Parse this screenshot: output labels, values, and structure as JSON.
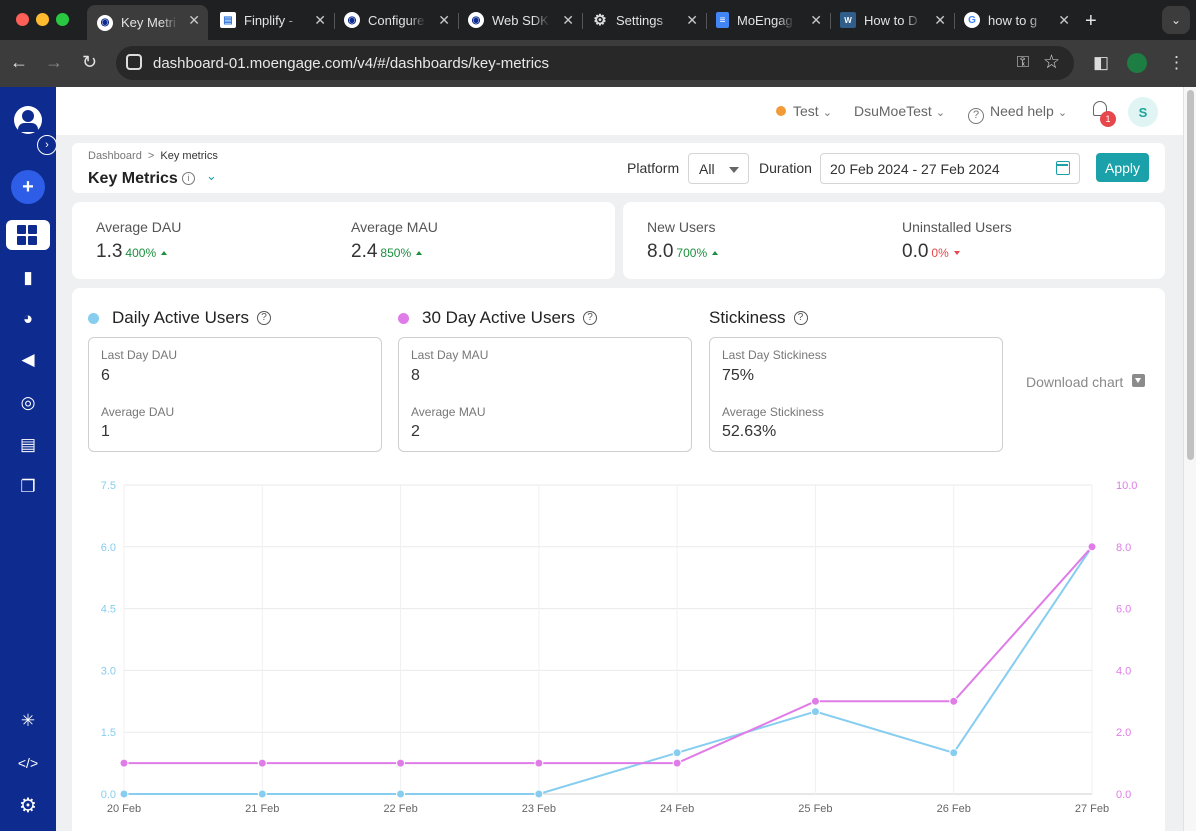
{
  "browser": {
    "tabs": [
      {
        "title": "Key Metri",
        "icon": "moengage-icon",
        "active": true
      },
      {
        "title": "Finplify -",
        "icon": "finplify-icon",
        "active": false
      },
      {
        "title": "Configure",
        "icon": "moengage-icon",
        "active": false
      },
      {
        "title": "Web SDK",
        "icon": "moengage-icon",
        "active": false
      },
      {
        "title": "Settings",
        "icon": "gear-icon",
        "active": false
      },
      {
        "title": "MoEngag",
        "icon": "docs-icon",
        "active": false
      },
      {
        "title": "How to D",
        "icon": "wa-icon",
        "active": false
      },
      {
        "title": "how to g",
        "icon": "google-icon",
        "active": false
      }
    ],
    "url": "dashboard-01.moengage.com/v4/#/dashboards/key-metrics"
  },
  "header": {
    "environment": "Test",
    "workspace": "DsuMoeTest",
    "help": "Need help",
    "notification_count": "1",
    "user_initial": "S"
  },
  "titlebar": {
    "breadcrumb_root": "Dashboard",
    "breadcrumb_sep": ">",
    "breadcrumb_current": "Key metrics",
    "title": "Key Metrics",
    "platform_label": "Platform",
    "platform_value": "All",
    "duration_label": "Duration",
    "duration_value": "20 Feb 2024 - 27 Feb 2024",
    "apply": "Apply"
  },
  "kpis": [
    {
      "label": "Average DAU",
      "value": "1.3",
      "pct": "400%",
      "trend": "up"
    },
    {
      "label": "Average MAU",
      "value": "2.4",
      "pct": "850%",
      "trend": "up"
    },
    {
      "label": "New Users",
      "value": "8.0",
      "pct": "700%",
      "trend": "up"
    },
    {
      "label": "Uninstalled Users",
      "value": "0.0",
      "pct": "0%",
      "trend": "down"
    }
  ],
  "sections": [
    {
      "title": "Daily Active Users",
      "dot": "#87cdf0",
      "l1": "Last Day DAU",
      "v1": "6",
      "l2": "Average DAU",
      "v2": "1"
    },
    {
      "title": "30 Day Active Users",
      "dot": "#df7ce8",
      "l1": "Last Day MAU",
      "v1": "8",
      "l2": "Average MAU",
      "v2": "2"
    },
    {
      "title": "Stickiness",
      "dot": "",
      "l1": "Last Day Stickiness",
      "v1": "75%",
      "l2": "Average Stickiness",
      "v2": "52.63%"
    }
  ],
  "download_chart": "Download chart",
  "chart_data": {
    "type": "line",
    "categories": [
      "20 Feb",
      "21 Feb",
      "22 Feb",
      "23 Feb",
      "24 Feb",
      "25 Feb",
      "26 Feb",
      "27 Feb"
    ],
    "series": [
      {
        "name": "Daily Active Users",
        "axis": "left",
        "color": "#87cdf0",
        "values": [
          0,
          0,
          0,
          0,
          1,
          2,
          1,
          6
        ]
      },
      {
        "name": "30 Day Active Users",
        "axis": "right",
        "color": "#df7ce8",
        "values": [
          1,
          1,
          1,
          1,
          1,
          3,
          3,
          8
        ]
      }
    ],
    "y_left": {
      "ticks": [
        "0.0",
        "1.5",
        "3.0",
        "4.5",
        "6.0",
        "7.5"
      ],
      "ylim": [
        0,
        7.5
      ],
      "color": "#87cdf0"
    },
    "y_right": {
      "ticks": [
        "0.0",
        "2.0",
        "4.0",
        "6.0",
        "8.0",
        "10.0"
      ],
      "ylim": [
        0,
        10
      ],
      "color": "#df7ce8"
    },
    "grid": true
  }
}
